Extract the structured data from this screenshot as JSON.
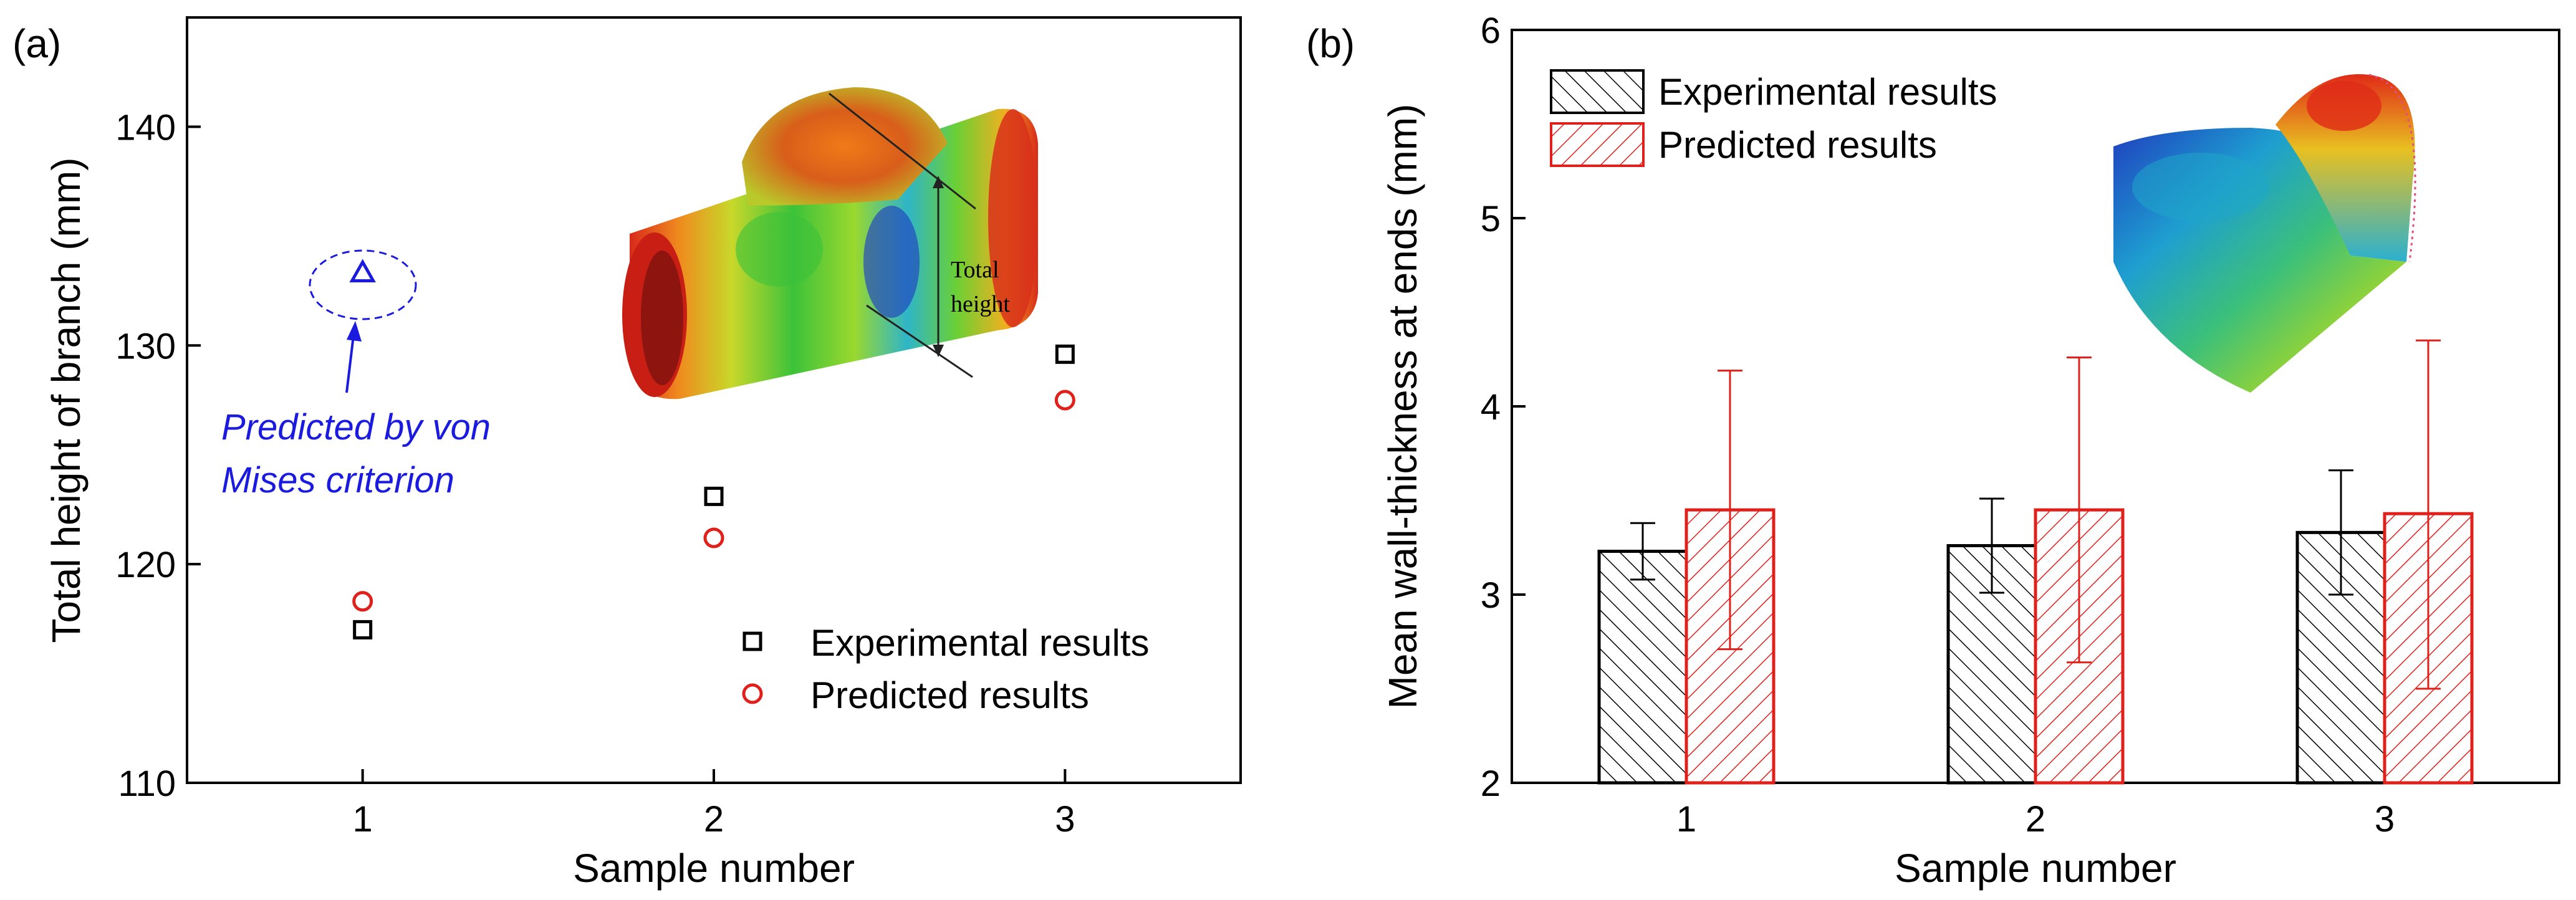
{
  "chart_data": [
    {
      "panel_label": "(a)",
      "type": "scatter",
      "xlabel": "Sample number",
      "ylabel": "Total height of branch (mm)",
      "xlim": [
        0.5,
        3.5
      ],
      "ylim": [
        110,
        145
      ],
      "xticks": [
        1,
        2,
        3
      ],
      "yticks": [
        110,
        120,
        130,
        140
      ],
      "grid": false,
      "legend_position": "bottom-right",
      "series": [
        {
          "name": "Experimental results",
          "marker": "square",
          "color": "#000000",
          "x": [
            1,
            2,
            3
          ],
          "y": [
            117.0,
            123.1,
            129.6
          ]
        },
        {
          "name": "Predicted results",
          "marker": "circle",
          "color": "#e0201b",
          "x": [
            1,
            2,
            3
          ],
          "y": [
            118.3,
            121.2,
            127.5
          ]
        }
      ],
      "annotation": {
        "marker": "triangle",
        "color": "#1b1bdf",
        "x": 1,
        "y": 133.3,
        "text_line1": "Predicted by von",
        "text_line2": "Mises criterion"
      },
      "inset_label_line1": "Total",
      "inset_label_line2": "height"
    },
    {
      "panel_label": "(b)",
      "type": "bar",
      "xlabel": "Sample number",
      "ylabel": "Mean wall-thickness at ends (mm)",
      "ylim": [
        2,
        6
      ],
      "yticks": [
        2,
        3,
        4,
        5,
        6
      ],
      "categories": [
        "1",
        "2",
        "3"
      ],
      "grid": false,
      "legend_position": "top-left",
      "series": [
        {
          "name": "Experimental results",
          "color": "#000000",
          "hatch": "diagonal",
          "values": [
            3.23,
            3.26,
            3.33
          ],
          "err_low": [
            3.08,
            3.01,
            3.0
          ],
          "err_high": [
            3.38,
            3.51,
            3.66
          ]
        },
        {
          "name": "Predicted results",
          "color": "#e0201b",
          "hatch": "diagonal",
          "values": [
            3.45,
            3.45,
            3.43
          ],
          "err_low": [
            2.71,
            2.64,
            2.5
          ],
          "err_high": [
            4.19,
            4.26,
            4.35
          ]
        }
      ]
    }
  ]
}
